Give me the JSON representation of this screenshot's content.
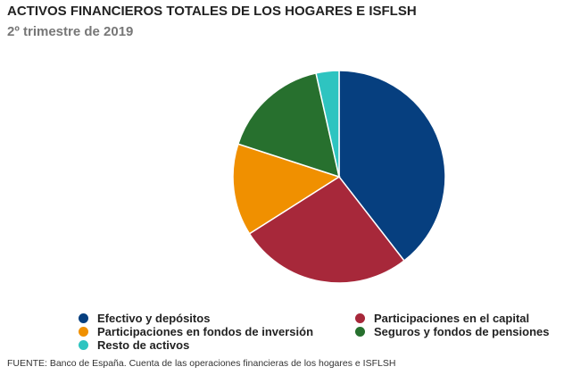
{
  "chart_data": {
    "type": "pie",
    "title": "ACTIVOS FINANCIEROS TOTALES DE LOS HOGARES E ISFLSH",
    "subtitle": "2º trimestre de 2019",
    "series": [
      {
        "name": "Efectivo y depósitos",
        "value": 39.5,
        "color": "#063f7f"
      },
      {
        "name": "Participaciones en el capital",
        "value": 26.5,
        "color": "#a7283a"
      },
      {
        "name": "Participaciones en fondos de inversión",
        "value": 14.0,
        "color": "#f09000"
      },
      {
        "name": "Seguros y fondos de pensiones",
        "value": 16.5,
        "color": "#27702e"
      },
      {
        "name": "Resto de activos",
        "value": 3.5,
        "color": "#2ec4c0"
      }
    ],
    "legend_position": "bottom",
    "source": "FUENTE: Banco de España. Cuenta de las operaciones financieras de los hogares e ISFLSH"
  }
}
